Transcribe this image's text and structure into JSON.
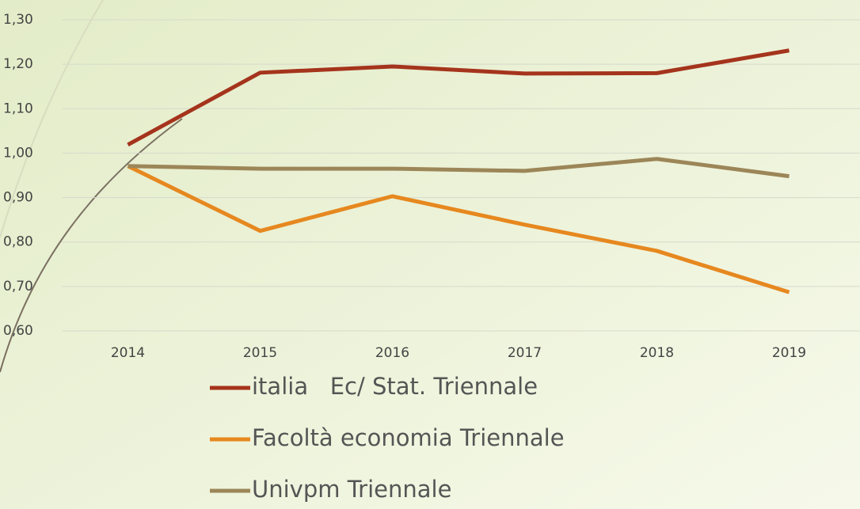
{
  "chart_data": {
    "type": "line",
    "categories": [
      "2014",
      "2015",
      "2016",
      "2017",
      "2018",
      "2019"
    ],
    "series": [
      {
        "name": "italia   Ec/ Stat. Triennale",
        "color": "#a5341c",
        "values": [
          1.019,
          1.181,
          1.195,
          1.179,
          1.18,
          1.231
        ]
      },
      {
        "name": "Facoltà economia Triennale",
        "color": "#e6881f",
        "values": [
          0.971,
          0.825,
          0.903,
          0.839,
          0.78,
          0.687
        ]
      },
      {
        "name": "Univpm Triennale",
        "color": "#9c8658",
        "values": [
          0.971,
          0.965,
          0.965,
          0.96,
          0.987,
          0.948
        ]
      }
    ],
    "ylim": [
      0.6,
      1.3
    ],
    "yticks": [
      {
        "value": 0.6,
        "label": "0,60"
      },
      {
        "value": 0.7,
        "label": "0,70"
      },
      {
        "value": 0.8,
        "label": "0,80"
      },
      {
        "value": 0.9,
        "label": "0,90"
      },
      {
        "value": 1.0,
        "label": "1,00"
      },
      {
        "value": 1.1,
        "label": "1,10"
      },
      {
        "value": 1.2,
        "label": "1,20"
      },
      {
        "value": 1.3,
        "label": "1,30"
      }
    ],
    "grid": true,
    "legend": "bottom"
  }
}
